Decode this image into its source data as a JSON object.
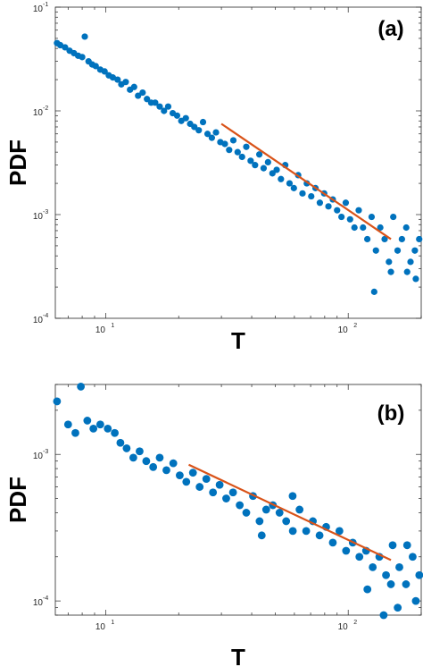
{
  "chart_data": [
    {
      "type": "scatter",
      "panel_label": "(a)",
      "xlabel": "T",
      "ylabel": "PDF",
      "xscale": "log",
      "yscale": "log",
      "xlim": [
        6.2,
        200
      ],
      "ylim": [
        0.0001,
        0.1
      ],
      "grid": false,
      "marker_color": "#0072BD",
      "fit_color": "#D95319",
      "x_ticks": [
        {
          "value": 10,
          "base": "10",
          "exp": "1"
        },
        {
          "value": 100,
          "base": "10",
          "exp": "2"
        }
      ],
      "y_ticks": [
        {
          "value": 0.1,
          "base": "10",
          "exp": "-1"
        },
        {
          "value": 0.01,
          "base": "10",
          "exp": "-2"
        },
        {
          "value": 0.001,
          "base": "10",
          "exp": "-3"
        },
        {
          "value": 0.0001,
          "base": "10",
          "exp": "-4"
        }
      ],
      "fit_line": {
        "x": [
          30,
          150
        ],
        "y": [
          0.0075,
          0.00058
        ]
      },
      "series": [
        {
          "points": [
            [
              6.3,
              0.045
            ],
            [
              6.5,
              0.043
            ],
            [
              6.8,
              0.041
            ],
            [
              7.1,
              0.038
            ],
            [
              7.4,
              0.036
            ],
            [
              7.7,
              0.034
            ],
            [
              8.0,
              0.033
            ],
            [
              8.2,
              0.052
            ],
            [
              8.5,
              0.03
            ],
            [
              8.8,
              0.028
            ],
            [
              9.1,
              0.027
            ],
            [
              9.5,
              0.025
            ],
            [
              9.9,
              0.024
            ],
            [
              10.3,
              0.022
            ],
            [
              10.7,
              0.021
            ],
            [
              11.2,
              0.02
            ],
            [
              11.6,
              0.018
            ],
            [
              12.1,
              0.019
            ],
            [
              12.6,
              0.016
            ],
            [
              13.1,
              0.017
            ],
            [
              13.6,
              0.014
            ],
            [
              14.2,
              0.015
            ],
            [
              14.8,
              0.013
            ],
            [
              15.4,
              0.012
            ],
            [
              16.0,
              0.012
            ],
            [
              16.7,
              0.011
            ],
            [
              17.4,
              0.01
            ],
            [
              18.1,
              0.011
            ],
            [
              18.9,
              0.0095
            ],
            [
              19.7,
              0.009
            ],
            [
              20.5,
              0.008
            ],
            [
              21.4,
              0.0085
            ],
            [
              22.3,
              0.0075
            ],
            [
              23.2,
              0.007
            ],
            [
              24.2,
              0.0065
            ],
            [
              25.2,
              0.0078
            ],
            [
              26.3,
              0.006
            ],
            [
              27.4,
              0.0055
            ],
            [
              28.5,
              0.0062
            ],
            [
              29.7,
              0.005
            ],
            [
              31.0,
              0.0048
            ],
            [
              32.3,
              0.0042
            ],
            [
              33.6,
              0.0052
            ],
            [
              35.0,
              0.004
            ],
            [
              36.5,
              0.0036
            ],
            [
              38.0,
              0.0045
            ],
            [
              39.6,
              0.0033
            ],
            [
              41.3,
              0.003
            ],
            [
              43.0,
              0.0038
            ],
            [
              44.8,
              0.0028
            ],
            [
              46.7,
              0.0032
            ],
            [
              48.7,
              0.0025
            ],
            [
              50.7,
              0.0027
            ],
            [
              52.8,
              0.0022
            ],
            [
              55.0,
              0.003
            ],
            [
              57.3,
              0.002
            ],
            [
              59.7,
              0.0018
            ],
            [
              62.2,
              0.0024
            ],
            [
              64.8,
              0.0016
            ],
            [
              67.5,
              0.002
            ],
            [
              70.4,
              0.0015
            ],
            [
              73.3,
              0.0018
            ],
            [
              76.4,
              0.0013
            ],
            [
              79.6,
              0.0016
            ],
            [
              82.9,
              0.0012
            ],
            [
              86.4,
              0.0014
            ],
            [
              90.0,
              0.0011
            ],
            [
              93.8,
              0.00095
            ],
            [
              97.7,
              0.0013
            ],
            [
              101.8,
              0.0009
            ],
            [
              106.1,
              0.00075
            ],
            [
              110.5,
              0.0011
            ],
            [
              115.1,
              0.00075
            ],
            [
              119.9,
              0.00058
            ],
            [
              124.9,
              0.00095
            ],
            [
              130.1,
              0.00045
            ],
            [
              135.6,
              0.00075
            ],
            [
              141.3,
              0.00058
            ],
            [
              147.2,
              0.00035
            ],
            [
              153.4,
              0.00095
            ],
            [
              159.8,
              0.00045
            ],
            [
              166.5,
              0.00058
            ],
            [
              173.5,
              0.00075
            ],
            [
              180.7,
              0.00035
            ],
            [
              188.3,
              0.00045
            ],
            [
              196.2,
              0.00058
            ],
            [
              128.0,
              0.00018
            ],
            [
              190.0,
              0.00024
            ],
            [
              150.0,
              0.00028
            ],
            [
              175.0,
              0.00028
            ]
          ]
        }
      ]
    },
    {
      "type": "scatter",
      "panel_label": "(b)",
      "xlabel": "T",
      "ylabel": "PDF",
      "xscale": "log",
      "yscale": "log",
      "xlim": [
        6.2,
        200
      ],
      "ylim": [
        8e-05,
        0.003
      ],
      "grid": false,
      "marker_color": "#0072BD",
      "fit_color": "#D95319",
      "x_ticks": [
        {
          "value": 10,
          "base": "10",
          "exp": "1"
        },
        {
          "value": 100,
          "base": "10",
          "exp": "2"
        }
      ],
      "y_ticks": [
        {
          "value": 0.001,
          "base": "10",
          "exp": "-3"
        },
        {
          "value": 0.0001,
          "base": "10",
          "exp": "-4"
        }
      ],
      "fit_line": {
        "x": [
          22,
          150
        ],
        "y": [
          0.00085,
          0.00019
        ]
      },
      "series": [
        {
          "points": [
            [
              6.3,
              0.0023
            ],
            [
              7.0,
              0.0016
            ],
            [
              7.5,
              0.0014
            ],
            [
              7.9,
              0.0029
            ],
            [
              8.4,
              0.0017
            ],
            [
              8.9,
              0.0015
            ],
            [
              9.5,
              0.0016
            ],
            [
              10.2,
              0.0015
            ],
            [
              10.9,
              0.0014
            ],
            [
              11.5,
              0.0012
            ],
            [
              12.2,
              0.0011
            ],
            [
              13.0,
              0.00095
            ],
            [
              13.8,
              0.00105
            ],
            [
              14.7,
              0.0009
            ],
            [
              15.7,
              0.00082
            ],
            [
              16.7,
              0.00095
            ],
            [
              17.8,
              0.00078
            ],
            [
              19.0,
              0.00087
            ],
            [
              20.2,
              0.00072
            ],
            [
              21.5,
              0.00065
            ],
            [
              22.9,
              0.00075
            ],
            [
              24.4,
              0.0006
            ],
            [
              26.0,
              0.00068
            ],
            [
              27.7,
              0.00055
            ],
            [
              29.5,
              0.00062
            ],
            [
              31.4,
              0.0005
            ],
            [
              33.5,
              0.00055
            ],
            [
              35.7,
              0.00045
            ],
            [
              38.0,
              0.0004
            ],
            [
              40.5,
              0.00052
            ],
            [
              43.1,
              0.00035
            ],
            [
              45.9,
              0.00042
            ],
            [
              48.9,
              0.00045
            ],
            [
              52.1,
              0.0004
            ],
            [
              55.5,
              0.00035
            ],
            [
              59.1,
              0.0003
            ],
            [
              63.0,
              0.00042
            ],
            [
              67.1,
              0.0003
            ],
            [
              71.5,
              0.00035
            ],
            [
              76.2,
              0.00028
            ],
            [
              81.1,
              0.00032
            ],
            [
              86.4,
              0.00025
            ],
            [
              92.0,
              0.0003
            ],
            [
              98.0,
              0.00022
            ],
            [
              104.4,
              0.00025
            ],
            [
              111.2,
              0.0002
            ],
            [
              118.5,
              0.00022
            ],
            [
              126.2,
              0.00017
            ],
            [
              134.4,
              0.0002
            ],
            [
              143.2,
              0.00015
            ],
            [
              152.5,
              0.00024
            ],
            [
              162.5,
              0.00017
            ],
            [
              173.1,
              0.00013
            ],
            [
              184.4,
              0.0002
            ],
            [
              196.4,
              0.00015
            ],
            [
              59.0,
              0.00052
            ],
            [
              44.0,
              0.00028
            ],
            [
              120.0,
              0.00012
            ],
            [
              150.0,
              0.00013
            ],
            [
              160.0,
              9e-05
            ],
            [
              190.0,
              0.0001
            ],
            [
              140.0,
              8e-05
            ],
            [
              175.0,
              0.00024
            ]
          ]
        }
      ]
    }
  ]
}
